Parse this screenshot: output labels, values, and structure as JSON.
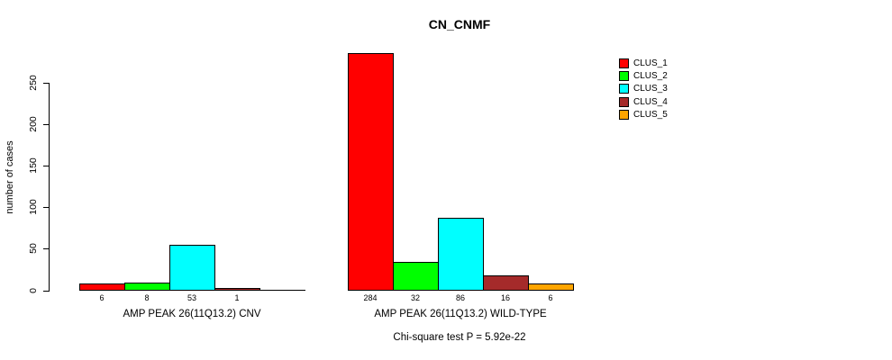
{
  "chart_data": {
    "type": "bar",
    "title": "CN_CNMF",
    "ylabel": "number of cases",
    "ylim": [
      0,
      250
    ],
    "yticks": [
      0,
      50,
      100,
      150,
      200,
      250
    ],
    "grid": false,
    "legend_position": "top-right",
    "clusters": [
      "CLUS_1",
      "CLUS_2",
      "CLUS_3",
      "CLUS_4",
      "CLUS_5"
    ],
    "colors": [
      "#FF0000",
      "#00FF00",
      "#00FFFF",
      "#A52A2A",
      "#FFA500"
    ],
    "groups": [
      {
        "label": "AMP PEAK 26(11Q13.2) CNV",
        "values": [
          6,
          8,
          53,
          1,
          0
        ],
        "bar_labels": [
          "6",
          "8",
          "53",
          "1",
          ""
        ]
      },
      {
        "label": "AMP PEAK 26(11Q13.2) WILD-TYPE",
        "values": [
          284,
          32,
          86,
          16,
          6
        ],
        "bar_labels": [
          "284",
          "32",
          "86",
          "16",
          "6"
        ]
      }
    ],
    "annotation": "Chi-square test P = 5.92e-22"
  }
}
